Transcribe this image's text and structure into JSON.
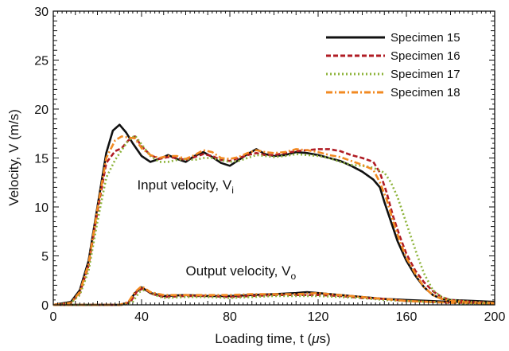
{
  "chart_data": {
    "type": "line",
    "title": "",
    "xlabel": "Loading time, t (",
    "xlabel_mu": "μ",
    "xlabel_unit": "s)",
    "ylabel": "Velocity, V (m/s)",
    "xlim": [
      0,
      200
    ],
    "ylim": [
      0,
      30
    ],
    "xticks": [
      0,
      40,
      80,
      120,
      160,
      200
    ],
    "yticks": [
      0,
      5,
      10,
      15,
      20,
      25,
      30
    ],
    "grid": false,
    "legend_position": "top-right",
    "annotations": [
      {
        "text": "Input velocity, V",
        "sub": "i",
        "at": [
          38,
          11.8
        ]
      },
      {
        "text": "Output velocity, V",
        "sub": "o",
        "at": [
          60,
          3.0
        ]
      }
    ],
    "series": [
      {
        "name": "Specimen 15",
        "color": "#111111",
        "dash": "solid",
        "input": {
          "x": [
            0,
            8,
            12,
            16,
            20,
            24,
            27,
            30,
            33,
            36,
            40,
            44,
            48,
            52,
            56,
            60,
            64,
            68,
            72,
            76,
            80,
            84,
            88,
            92,
            96,
            100,
            105,
            110,
            115,
            120,
            125,
            130,
            135,
            140,
            145,
            148,
            150,
            153,
            156,
            160,
            164,
            168,
            172,
            176,
            180,
            190,
            200
          ],
          "y": [
            0,
            0.3,
            1.5,
            4.5,
            10,
            15.5,
            17.8,
            18.4,
            17.6,
            16.5,
            15.2,
            14.6,
            14.9,
            15.3,
            14.9,
            14.6,
            15.2,
            15.6,
            15.1,
            14.5,
            14.2,
            14.8,
            15.4,
            15.9,
            15.4,
            15.2,
            15.3,
            15.6,
            15.5,
            15.3,
            15.0,
            14.7,
            14.2,
            13.6,
            12.8,
            12.0,
            10.5,
            8.5,
            6.5,
            4.5,
            3.0,
            1.8,
            1.0,
            0.6,
            0.5,
            0.4,
            0.3
          ]
        },
        "output": {
          "x": [
            0,
            30,
            34,
            37,
            40,
            44,
            50,
            60,
            70,
            80,
            90,
            100,
            110,
            115,
            120,
            130,
            140,
            150,
            160,
            170,
            180,
            190,
            200
          ],
          "y": [
            0,
            0,
            0.2,
            1.2,
            1.8,
            1.2,
            0.9,
            1.0,
            0.9,
            0.9,
            1.0,
            1.1,
            1.2,
            1.3,
            1.2,
            1.0,
            0.8,
            0.6,
            0.5,
            0.4,
            0.3,
            0.3,
            0.2
          ]
        }
      },
      {
        "name": "Specimen 16",
        "color": "#b01c24",
        "dash": "6,3",
        "input": {
          "x": [
            0,
            8,
            12,
            16,
            20,
            24,
            28,
            31,
            34,
            37,
            40,
            44,
            48,
            52,
            56,
            60,
            64,
            68,
            72,
            76,
            80,
            84,
            88,
            92,
            96,
            100,
            105,
            110,
            115,
            120,
            125,
            130,
            135,
            140,
            145,
            148,
            151,
            154,
            157,
            160,
            164,
            168,
            172,
            176,
            180,
            190,
            200
          ],
          "y": [
            0,
            0.2,
            1.2,
            4.0,
            9.5,
            14.5,
            15.7,
            16.0,
            16.8,
            17.2,
            16.2,
            15.3,
            14.9,
            15.1,
            15.0,
            14.8,
            15.1,
            15.4,
            15.2,
            14.8,
            14.7,
            15.0,
            15.3,
            15.5,
            15.3,
            15.3,
            15.5,
            15.7,
            15.8,
            15.9,
            15.9,
            15.7,
            15.3,
            15.0,
            14.6,
            13.5,
            11.5,
            9.0,
            7.0,
            5.2,
            3.5,
            2.3,
            1.4,
            0.8,
            0.5,
            0.3,
            0.2
          ]
        },
        "output": {
          "x": [
            0,
            31,
            35,
            38,
            41,
            45,
            50,
            60,
            70,
            80,
            90,
            100,
            110,
            120,
            130,
            140,
            150,
            160,
            170,
            180,
            190,
            200
          ],
          "y": [
            0,
            0,
            0.3,
            1.4,
            1.7,
            1.1,
            0.8,
            0.9,
            0.9,
            0.8,
            0.9,
            1.0,
            1.0,
            1.0,
            0.9,
            0.7,
            0.6,
            0.4,
            0.3,
            0.2,
            0.2,
            0.1
          ]
        }
      },
      {
        "name": "Specimen 17",
        "color": "#8db33a",
        "dash": "2,3",
        "input": {
          "x": [
            0,
            8,
            12,
            16,
            20,
            24,
            28,
            31,
            34,
            37,
            40,
            44,
            48,
            52,
            56,
            60,
            64,
            68,
            72,
            76,
            80,
            84,
            88,
            92,
            96,
            100,
            105,
            110,
            115,
            120,
            125,
            130,
            135,
            140,
            145,
            150,
            153,
            156,
            159,
            162,
            165,
            168,
            172,
            176,
            180,
            190,
            200
          ],
          "y": [
            0,
            0.2,
            1.0,
            3.5,
            8.5,
            13.0,
            14.8,
            15.8,
            16.8,
            17.3,
            16.4,
            15.2,
            14.6,
            14.6,
            14.8,
            14.9,
            14.8,
            15.0,
            15.0,
            14.8,
            14.6,
            14.7,
            15.0,
            15.3,
            15.2,
            15.1,
            15.2,
            15.4,
            15.3,
            15.2,
            15.0,
            14.6,
            14.3,
            14.2,
            14.0,
            13.5,
            12.5,
            11.0,
            9.0,
            7.0,
            5.0,
            3.2,
            1.5,
            0.8,
            0.5,
            0.3,
            0.2
          ]
        },
        "output": {
          "x": [
            0,
            32,
            36,
            39,
            42,
            46,
            50,
            60,
            70,
            80,
            90,
            100,
            110,
            120,
            130,
            140,
            150,
            160,
            170,
            180,
            190,
            200
          ],
          "y": [
            0,
            0,
            0.3,
            1.3,
            1.6,
            1.0,
            0.7,
            0.8,
            0.8,
            0.7,
            0.8,
            0.9,
            0.9,
            0.9,
            0.8,
            0.7,
            0.5,
            0.4,
            0.3,
            0.2,
            0.1,
            0.1
          ]
        }
      },
      {
        "name": "Specimen 18",
        "color": "#f28a22",
        "dash": "8,3,2,3",
        "input": {
          "x": [
            0,
            8,
            12,
            16,
            20,
            24,
            28,
            31,
            34,
            37,
            40,
            44,
            48,
            52,
            56,
            60,
            64,
            68,
            72,
            76,
            80,
            84,
            88,
            92,
            96,
            100,
            105,
            110,
            115,
            120,
            125,
            130,
            135,
            140,
            145,
            148,
            151,
            154,
            157,
            160,
            164,
            168,
            172,
            176,
            180,
            190,
            200
          ],
          "y": [
            0,
            0.2,
            1.3,
            4.2,
            9.8,
            15.0,
            16.8,
            17.2,
            17.1,
            17.0,
            16.0,
            15.3,
            15.0,
            15.2,
            15.2,
            14.9,
            15.3,
            15.8,
            15.6,
            15.0,
            14.9,
            15.1,
            15.5,
            15.8,
            15.6,
            15.5,
            15.6,
            15.9,
            15.8,
            15.6,
            15.3,
            15.1,
            14.7,
            14.3,
            13.8,
            12.5,
            10.8,
            8.5,
            6.5,
            4.8,
            3.2,
            1.8,
            1.0,
            0.6,
            0.4,
            0.2,
            0.2
          ]
        },
        "output": {
          "x": [
            0,
            30,
            34,
            37,
            40,
            44,
            50,
            60,
            70,
            80,
            90,
            100,
            110,
            120,
            130,
            140,
            150,
            160,
            170,
            180,
            190,
            200
          ],
          "y": [
            0,
            0,
            0.3,
            1.3,
            1.9,
            1.3,
            1.0,
            1.0,
            1.0,
            1.0,
            1.1,
            1.1,
            1.1,
            1.2,
            1.0,
            0.8,
            0.6,
            0.4,
            0.3,
            0.2,
            0.2,
            0.1
          ]
        }
      }
    ]
  }
}
